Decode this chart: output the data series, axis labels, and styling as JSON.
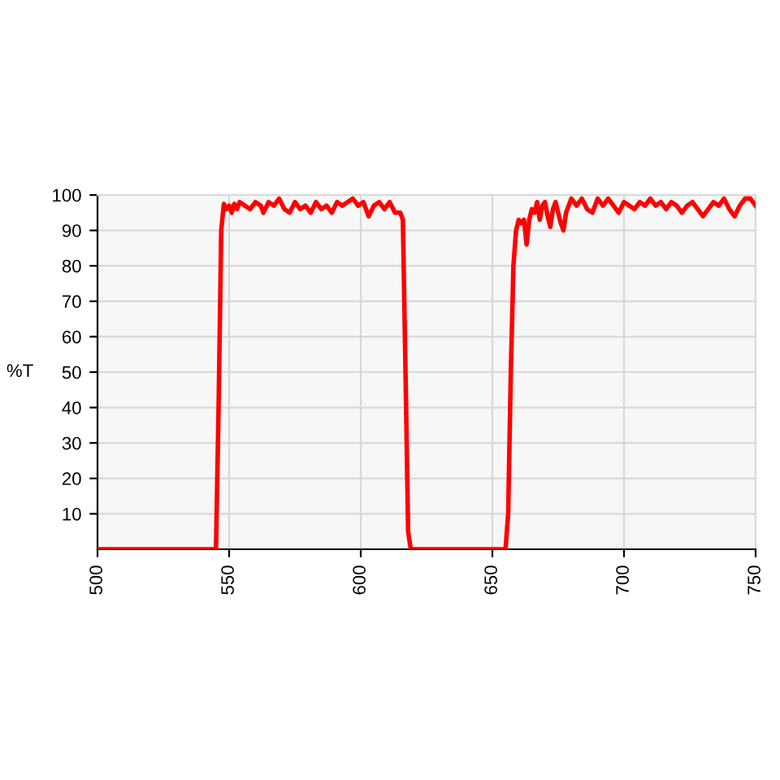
{
  "chart_data": {
    "type": "line",
    "ylabel": "%T",
    "x": [
      500,
      545,
      546,
      547,
      548,
      549,
      550,
      551,
      552,
      553,
      554,
      556,
      558,
      560,
      562,
      563,
      565,
      567,
      569,
      571,
      573,
      575,
      577,
      579,
      581,
      583,
      585,
      587,
      589,
      591,
      593,
      595,
      597,
      599,
      601,
      603,
      605,
      607,
      609,
      611,
      613,
      615,
      616,
      617,
      618,
      619,
      655,
      656,
      657,
      658,
      659,
      660,
      661,
      662,
      663,
      664,
      665,
      666,
      667,
      668,
      669,
      670,
      671,
      672,
      673,
      674,
      676,
      677,
      678,
      680,
      682,
      684,
      686,
      688,
      690,
      692,
      694,
      696,
      698,
      700,
      702,
      704,
      706,
      708,
      710,
      712,
      714,
      716,
      718,
      720,
      722,
      724,
      726,
      728,
      730,
      732,
      734,
      736,
      738,
      740,
      742,
      744,
      746,
      748,
      750
    ],
    "series": [
      {
        "color": "#ff0000",
        "values": [
          0,
          0,
          40,
          90,
          97.5,
          96,
          97,
          95,
          97.5,
          96,
          98,
          97,
          96,
          98,
          97,
          95,
          98,
          97,
          99,
          96,
          95,
          98,
          96,
          97,
          95,
          98,
          96,
          97,
          95,
          98,
          97,
          98,
          99,
          97,
          98,
          94,
          97,
          98,
          96,
          98,
          95,
          95,
          93,
          50,
          5,
          0,
          0,
          10,
          50,
          80,
          90,
          93,
          92,
          93,
          86,
          93,
          96,
          95,
          98,
          93,
          97,
          98,
          94,
          91,
          96,
          98,
          92,
          90,
          95,
          99,
          97,
          99,
          96,
          95,
          99,
          97,
          99,
          97,
          95,
          98,
          97,
          96,
          98,
          97,
          99,
          97,
          98,
          96,
          98,
          97,
          95,
          97,
          98,
          96,
          94,
          96,
          98,
          97,
          99,
          96,
          94,
          97,
          99,
          99,
          97
        ]
      }
    ],
    "xlim": [
      500,
      750
    ],
    "xticks": [
      500,
      550,
      600,
      650,
      700,
      750
    ],
    "ylim": [
      0,
      100
    ],
    "yticks": [
      10,
      20,
      30,
      40,
      50,
      60,
      70,
      80,
      90,
      100
    ],
    "grid": true,
    "marker": "none",
    "line_style": "solid"
  }
}
